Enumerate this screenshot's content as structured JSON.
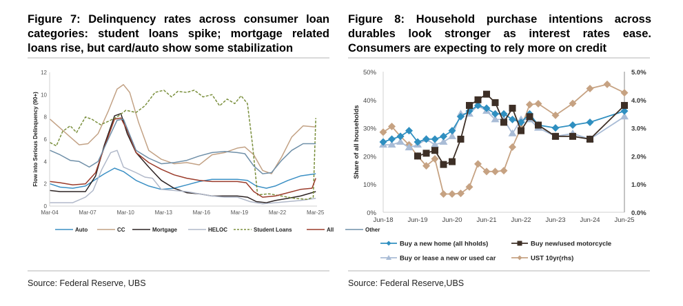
{
  "left": {
    "title": "Figure 7: Delinquency rates across consumer loan categories: student loans spike; mortgage related loans rise, but card/auto show some stabilization",
    "source": "Source: Federal Reserve, UBS"
  },
  "right": {
    "title": "Figure 8: Household purchase intentions across durables look stronger as interest rates ease. Consumers are expecting to rely more on credit",
    "source": "Source: Federal Reserve,UBS"
  },
  "chart_data": [
    {
      "type": "line",
      "title": "Figure 7: Delinquency rates across consumer loan categories: student loans spike; mortgage related loans rise, but card/auto show some stabilization",
      "xlabel": "",
      "ylabel": "Flow into Serious Delinquency (90+)",
      "ylim": [
        0,
        12
      ],
      "yticks": [
        "0",
        "2",
        "4",
        "6",
        "8",
        "10",
        "12"
      ],
      "xticks": [
        "Mar-04",
        "Mar-07",
        "Mar-10",
        "Mar-13",
        "Mar-16",
        "Mar-19",
        "Mar-22",
        "Mar-25"
      ],
      "x_year_range": [
        2004.17,
        2025.3
      ],
      "grid": false,
      "legend": "bottom",
      "series": [
        {
          "name": "Auto",
          "color": "#3a8fc4",
          "dash": false,
          "x": [
            2004.2,
            2005,
            2006,
            2007,
            2007.8,
            2008.5,
            2009.3,
            2010,
            2011,
            2012,
            2013,
            2014,
            2015,
            2016,
            2017,
            2018,
            2019,
            2019.8,
            2020.5,
            2021.3,
            2022,
            2023,
            2024,
            2025.2
          ],
          "y": [
            2.0,
            1.7,
            1.6,
            1.8,
            2.4,
            2.9,
            3.4,
            3.1,
            2.3,
            1.8,
            1.5,
            1.6,
            1.9,
            2.2,
            2.4,
            2.4,
            2.4,
            2.3,
            1.8,
            1.6,
            1.8,
            2.3,
            2.7,
            2.9
          ]
        },
        {
          "name": "CC",
          "color": "#c2a184",
          "dash": false,
          "x": [
            2004.2,
            2005,
            2005.8,
            2006.5,
            2007.2,
            2008,
            2008.8,
            2009.5,
            2010,
            2010.5,
            2011.2,
            2012,
            2013,
            2014,
            2015,
            2016,
            2017,
            2018,
            2019,
            2019.6,
            2020.3,
            2021,
            2021.7,
            2022.5,
            2023.3,
            2024.2,
            2025.2
          ],
          "y": [
            7.8,
            7.0,
            6.2,
            5.5,
            5.6,
            6.5,
            8.5,
            10.5,
            10.9,
            10.2,
            7.5,
            5.0,
            4.2,
            3.8,
            3.9,
            3.7,
            4.6,
            4.8,
            5.2,
            5.3,
            4.6,
            3.2,
            2.9,
            4.4,
            6.2,
            7.2,
            7.1
          ]
        },
        {
          "name": "Mortgage",
          "color": "#2b2222",
          "dash": false,
          "x": [
            2004.2,
            2005,
            2006,
            2007,
            2007.8,
            2008.5,
            2009.3,
            2009.8,
            2010.3,
            2011,
            2012,
            2013,
            2014,
            2015,
            2016,
            2017,
            2018,
            2019,
            2019.8,
            2020.5,
            2021.3,
            2022,
            2023,
            2024,
            2025.2
          ],
          "y": [
            1.4,
            1.3,
            1.3,
            1.3,
            2.7,
            5.5,
            8.1,
            8.3,
            6.5,
            4.8,
            3.5,
            2.3,
            1.6,
            1.2,
            1.1,
            0.9,
            0.9,
            0.9,
            0.8,
            0.4,
            0.3,
            0.5,
            0.7,
            0.9,
            1.3
          ]
        },
        {
          "name": "HELOC",
          "color": "#b0b8c9",
          "dash": false,
          "x": [
            2004.2,
            2005,
            2006,
            2007,
            2007.6,
            2008.3,
            2009,
            2009.5,
            2010,
            2011,
            2011.7,
            2012.3,
            2013,
            2014,
            2015,
            2016,
            2017,
            2018,
            2019,
            2020,
            2021,
            2022,
            2023,
            2024,
            2025.2
          ],
          "y": [
            0.3,
            0.3,
            0.3,
            0.8,
            1.4,
            3.3,
            4.8,
            5.0,
            3.5,
            3.0,
            2.6,
            2.5,
            1.5,
            1.4,
            1.3,
            1.1,
            0.9,
            0.8,
            0.8,
            0.4,
            0.2,
            0.3,
            0.4,
            0.5,
            0.7
          ]
        },
        {
          "name": "Student Loans",
          "color": "#7a8f3c",
          "dash": true,
          "x": [
            2004.2,
            2004.7,
            2005.2,
            2005.8,
            2006.3,
            2007,
            2007.5,
            2008.2,
            2008.8,
            2009.5,
            2010.2,
            2011,
            2011.7,
            2012.5,
            2013.2,
            2013.8,
            2014.3,
            2015,
            2015.6,
            2016.3,
            2017,
            2017.6,
            2018.2,
            2018.8,
            2019.3,
            2019.8,
            2020.2,
            2020.6,
            2021.5,
            2022.5,
            2023.5,
            2024.5,
            2025.0,
            2025.2
          ],
          "y": [
            5.7,
            5.4,
            6.7,
            7.2,
            6.6,
            8.0,
            7.8,
            7.3,
            7.6,
            8.0,
            8.6,
            8.4,
            9.0,
            10.2,
            10.4,
            9.8,
            10.3,
            10.2,
            10.4,
            9.8,
            10.0,
            9.0,
            9.6,
            9.2,
            9.9,
            9.2,
            5.5,
            1.0,
            1.1,
            0.9,
            0.7,
            0.6,
            0.8,
            7.9
          ]
        },
        {
          "name": "All",
          "color": "#9b3b2a",
          "dash": false,
          "x": [
            2004.2,
            2005,
            2006,
            2007,
            2007.8,
            2008.5,
            2009.3,
            2009.8,
            2010.3,
            2011,
            2012,
            2013,
            2014,
            2015,
            2016,
            2017,
            2018,
            2019,
            2019.7,
            2020.3,
            2021,
            2022,
            2023,
            2024,
            2024.9,
            2025.2
          ],
          "y": [
            2.2,
            2.1,
            1.9,
            2.0,
            3.0,
            5.3,
            7.8,
            7.9,
            6.8,
            4.8,
            3.9,
            3.3,
            2.8,
            2.5,
            2.3,
            2.2,
            2.2,
            2.2,
            2.1,
            1.3,
            0.8,
            0.9,
            1.2,
            1.5,
            1.6,
            2.5
          ]
        },
        {
          "name": "Other",
          "color": "#6f8fa8",
          "dash": false,
          "x": [
            2004.2,
            2005,
            2005.8,
            2006.5,
            2007.3,
            2008,
            2008.8,
            2009.5,
            2010,
            2011,
            2012,
            2013,
            2014,
            2015,
            2016,
            2017,
            2018,
            2019,
            2019.6,
            2020.3,
            2021,
            2021.7,
            2022.5,
            2023.3,
            2024.2,
            2025.2
          ],
          "y": [
            5.0,
            4.6,
            4.1,
            4.0,
            3.5,
            4.0,
            6.0,
            7.7,
            7.8,
            5.0,
            4.3,
            3.8,
            3.9,
            4.1,
            4.5,
            4.8,
            4.9,
            4.8,
            4.7,
            3.6,
            2.9,
            3.0,
            4.1,
            5.0,
            5.6,
            5.6
          ]
        }
      ]
    },
    {
      "type": "line",
      "title": "Figure 8: Household purchase intentions across durables look stronger as interest rates ease. Consumers are expecting to rely more on credit",
      "xlabel": "",
      "ylabel": "Share of all households",
      "ylim": [
        0,
        50
      ],
      "yticks": [
        "0%",
        "10%",
        "20%",
        "30%",
        "40%",
        "50%"
      ],
      "y2lim": [
        0,
        5
      ],
      "y2ticks": [
        "0.0%",
        "1.0%",
        "2.0%",
        "3.0%",
        "4.0%",
        "5.0%"
      ],
      "xticks": [
        "Jun-18",
        "Jun-19",
        "Jun-20",
        "Jun-21",
        "Jun-22",
        "Jun-23",
        "Jun-24",
        "Jun-25"
      ],
      "x_year_range": [
        2018.5,
        2025.5
      ],
      "grid": false,
      "legend": "bottom",
      "series": [
        {
          "name": "Buy a new home (all hholds)",
          "color": "#2f8fc0",
          "marker": "diamond",
          "axis": "left",
          "x": [
            2018.5,
            2018.75,
            2019.0,
            2019.25,
            2019.5,
            2019.75,
            2020.0,
            2020.25,
            2020.5,
            2020.75,
            2021.0,
            2021.25,
            2021.5,
            2021.75,
            2022.0,
            2022.25,
            2022.5,
            2022.75,
            2023.0,
            2023.5,
            2024.0,
            2024.5,
            2025.5
          ],
          "y": [
            25,
            26,
            27,
            29,
            25,
            26,
            26,
            27,
            29,
            34,
            36,
            38,
            37,
            35,
            35,
            33,
            32,
            35,
            31,
            30,
            31,
            32,
            36
          ]
        },
        {
          "name": "Buy new/used motorcycle",
          "color": "#3d2f26",
          "marker": "square",
          "axis": "left",
          "x": [
            2019.5,
            2019.75,
            2020.0,
            2020.25,
            2020.5,
            2020.75,
            2021.0,
            2021.25,
            2021.5,
            2021.75,
            2022.0,
            2022.25,
            2022.5,
            2022.75,
            2023.0,
            2023.5,
            2024.0,
            2024.5,
            2025.5
          ],
          "y": [
            20,
            21,
            22,
            17,
            18,
            26,
            38,
            40,
            42,
            39,
            32,
            37,
            29,
            34,
            31,
            27,
            27,
            26,
            38
          ]
        },
        {
          "name": "Buy or lease a new or used car",
          "color": "#a9bcd6",
          "marker": "triangle",
          "axis": "left",
          "x": [
            2018.5,
            2018.75,
            2019.0,
            2019.25,
            2019.5,
            2019.75,
            2020.0,
            2020.25,
            2020.5,
            2020.75,
            2021.0,
            2021.25,
            2021.5,
            2021.75,
            2022.0,
            2022.25,
            2022.5,
            2022.75,
            2023.0,
            2023.5,
            2024.0,
            2024.5,
            2025.5
          ],
          "y": [
            24,
            24,
            25,
            23,
            24,
            26,
            24,
            25,
            27,
            35,
            35,
            38,
            36,
            33,
            33,
            28,
            33,
            33,
            30,
            27,
            28,
            26,
            34
          ]
        },
        {
          "name": "UST 10yr(rhs)",
          "color": "#c6a282",
          "marker": "diamond",
          "axis": "right",
          "x": [
            2018.5,
            2018.75,
            2019.0,
            2019.25,
            2019.5,
            2019.75,
            2020.0,
            2020.25,
            2020.5,
            2020.75,
            2021.0,
            2021.25,
            2021.5,
            2021.75,
            2022.0,
            2022.25,
            2022.5,
            2022.75,
            2023.0,
            2023.5,
            2024.0,
            2024.5,
            2025.0,
            2025.5
          ],
          "y": [
            2.85,
            3.05,
            2.7,
            2.4,
            2.0,
            1.65,
            1.9,
            0.65,
            0.65,
            0.67,
            0.9,
            1.72,
            1.45,
            1.45,
            1.48,
            2.32,
            3.0,
            3.83,
            3.86,
            3.45,
            3.87,
            4.4,
            4.55,
            4.25
          ]
        }
      ]
    }
  ]
}
